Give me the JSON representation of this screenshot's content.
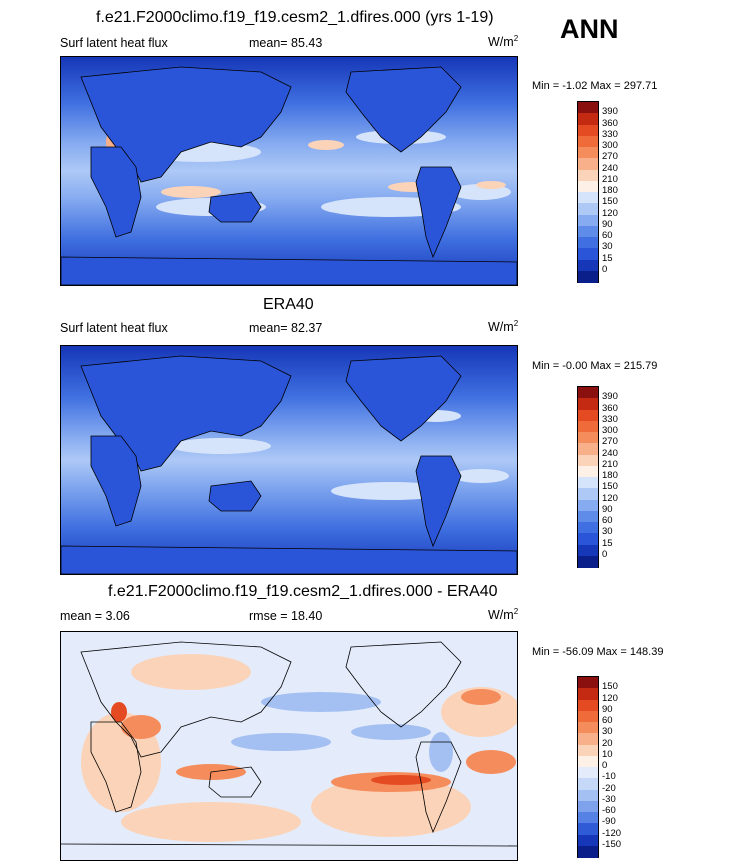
{
  "season": "ANN",
  "panels": [
    {
      "id": "model",
      "title": "f.e21.F2000climo.f19_f19.cesm2_1.dfires.000 (yrs 1-19)",
      "left_label": "Surf latent heat flux",
      "stat_label": "mean=  85.43",
      "units_base": "W/m",
      "units_exp": "2",
      "minmax": "Min =  -1.02 Max = 297.71",
      "levels": [
        "390",
        "360",
        "330",
        "300",
        "270",
        "240",
        "210",
        "180",
        "150",
        "120",
        "90",
        "60",
        "30",
        "15",
        "0"
      ],
      "colors": [
        "#8a0f0f",
        "#c42a12",
        "#e54b22",
        "#f06b3a",
        "#f58c5c",
        "#f8b08a",
        "#fbd3b8",
        "#fdf0e6",
        "#d6e4fb",
        "#aec9f6",
        "#86abf0",
        "#5f8ce8",
        "#3f6fe0",
        "#2b55d8",
        "#1637b8",
        "#0a1f8a"
      ]
    },
    {
      "id": "obs",
      "title": "ERA40",
      "left_label": "Surf latent heat flux",
      "stat_label": "mean=  82.37",
      "units_base": "W/m",
      "units_exp": "2",
      "minmax": "Min =  -0.00 Max = 215.79",
      "levels": [
        "390",
        "360",
        "330",
        "300",
        "270",
        "240",
        "210",
        "180",
        "150",
        "120",
        "90",
        "60",
        "30",
        "15",
        "0"
      ],
      "colors": [
        "#8a0f0f",
        "#c42a12",
        "#e54b22",
        "#f06b3a",
        "#f58c5c",
        "#f8b08a",
        "#fbd3b8",
        "#fdf0e6",
        "#d6e4fb",
        "#aec9f6",
        "#86abf0",
        "#5f8ce8",
        "#3f6fe0",
        "#2b55d8",
        "#1637b8",
        "#0a1f8a"
      ]
    },
    {
      "id": "diff",
      "title": "f.e21.F2000climo.f19_f19.cesm2_1.dfires.000 - ERA40",
      "left_label": "mean =  3.06",
      "stat_label": "rmse =  18.40",
      "units_base": "W/m",
      "units_exp": "2",
      "minmax": "Min = -56.09 Max = 148.39",
      "levels": [
        "150",
        "120",
        "90",
        "60",
        "30",
        "20",
        "10",
        "0",
        "-10",
        "-20",
        "-30",
        "-60",
        "-90",
        "-120",
        "-150"
      ],
      "colors": [
        "#8a0f0f",
        "#c42a12",
        "#e54b22",
        "#f06b3a",
        "#f58c5c",
        "#f8b08a",
        "#fbd3b8",
        "#fdf0e6",
        "#e4ecfb",
        "#c6d8f7",
        "#a4c0f2",
        "#7ea2ec",
        "#5582e4",
        "#2f5bd6",
        "#1637b8",
        "#0a1f8a"
      ]
    }
  ]
}
